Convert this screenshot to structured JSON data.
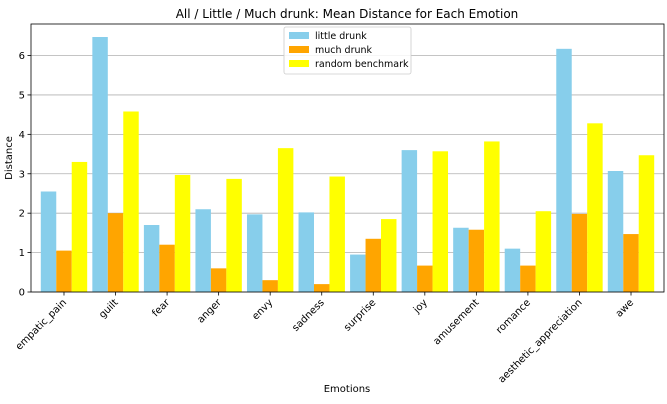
{
  "chart_data": {
    "type": "bar",
    "title": "All / Little / Much drunk: Mean Distance for Each Emotion",
    "xlabel": "Emotions",
    "ylabel": "Distance",
    "ylim": [
      0,
      6.8
    ],
    "yticks": [
      0,
      1,
      2,
      3,
      4,
      5,
      6
    ],
    "grid": "horizontal",
    "legend_position": "top-center",
    "categories": [
      "empatic_pain",
      "guilt",
      "fear",
      "anger",
      "envy",
      "sadness",
      "surprise",
      "joy",
      "amusement",
      "romance",
      "aesthetic_appreciation",
      "awe"
    ],
    "series": [
      {
        "name": "little drunk",
        "color": "#87ceeb",
        "values": [
          2.55,
          6.47,
          1.7,
          2.1,
          1.97,
          2.02,
          0.95,
          3.6,
          1.63,
          1.1,
          6.17,
          3.07
        ]
      },
      {
        "name": "much drunk",
        "color": "#ffa500",
        "values": [
          1.05,
          2.0,
          1.2,
          0.6,
          0.3,
          0.2,
          1.35,
          0.67,
          1.58,
          0.67,
          1.98,
          1.47
        ]
      },
      {
        "name": "random benchmark",
        "color": "#ffff00",
        "values": [
          3.3,
          4.58,
          2.97,
          2.87,
          3.65,
          2.93,
          1.85,
          3.57,
          3.82,
          2.05,
          4.28,
          3.47
        ]
      }
    ]
  }
}
